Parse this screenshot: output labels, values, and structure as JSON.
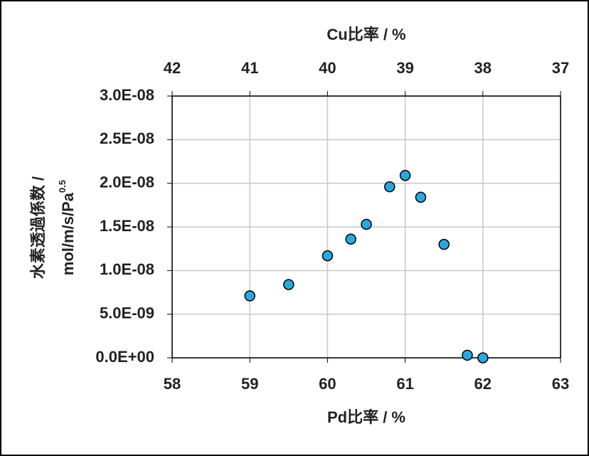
{
  "chart_data": {
    "type": "scatter",
    "xlabel": "Pd比率 / %",
    "x2label": "Cu比率 / %",
    "ylabel": [
      "水素透過係数 /",
      "mol/m/s/Pa"
    ],
    "ylabel_superscript": "0.5",
    "xlim": [
      58,
      63
    ],
    "xticks": [
      58,
      59,
      60,
      61,
      62,
      63
    ],
    "x2lim": [
      42,
      37
    ],
    "x2ticks": [
      42,
      41,
      40,
      39,
      38,
      37
    ],
    "ylim": [
      0,
      3e-08
    ],
    "yticks": [
      {
        "value": 0,
        "label": "0.0E+00"
      },
      {
        "value": 5e-09,
        "label": "5.0E-09"
      },
      {
        "value": 1e-08,
        "label": "1.0E-08"
      },
      {
        "value": 1.5e-08,
        "label": "1.5E-08"
      },
      {
        "value": 2e-08,
        "label": "2.0E-08"
      },
      {
        "value": 2.5e-08,
        "label": "2.5E-08"
      },
      {
        "value": 3e-08,
        "label": "3.0E-08"
      }
    ],
    "grid": true,
    "color": "#29a8e0",
    "x": [
      59.0,
      59.5,
      60.0,
      60.3,
      60.5,
      60.8,
      61.0,
      61.2,
      61.5,
      61.8,
      62.0
    ],
    "values": [
      7.1e-09,
      8.4e-09,
      1.17e-08,
      1.36e-08,
      1.53e-08,
      1.96e-08,
      2.09e-08,
      1.84e-08,
      1.3e-08,
      3e-10,
      0
    ]
  }
}
